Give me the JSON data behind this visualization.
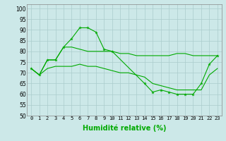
{
  "xlabel": "Humidité relative (%)",
  "bg_color": "#cce8e8",
  "grid_color": "#aacccc",
  "line_color": "#00aa00",
  "marker": "*",
  "xlim": [
    -0.5,
    23.5
  ],
  "ylim": [
    50,
    102
  ],
  "yticks": [
    50,
    55,
    60,
    65,
    70,
    75,
    80,
    85,
    90,
    95,
    100
  ],
  "xticks": [
    0,
    1,
    2,
    3,
    4,
    5,
    6,
    7,
    8,
    9,
    10,
    11,
    12,
    13,
    14,
    15,
    16,
    17,
    18,
    19,
    20,
    21,
    22,
    23
  ],
  "line1_x": [
    0,
    1,
    2,
    3,
    4,
    5,
    6,
    7,
    8,
    9,
    10,
    14,
    15,
    16,
    17,
    18,
    19,
    20,
    21,
    22,
    23
  ],
  "line1_y": [
    72,
    69,
    76,
    76,
    82,
    86,
    91,
    91,
    89,
    81,
    80,
    65,
    61,
    62,
    61,
    60,
    60,
    60,
    65,
    74,
    78
  ],
  "line2_x": [
    0,
    1,
    2,
    3,
    4,
    5,
    6,
    7,
    8,
    9,
    10,
    11,
    12,
    13,
    14,
    15,
    16,
    17,
    18,
    19,
    20,
    21,
    22,
    23
  ],
  "line2_y": [
    72,
    69,
    76,
    76,
    82,
    82,
    81,
    80,
    80,
    80,
    80,
    79,
    79,
    78,
    78,
    78,
    78,
    78,
    79,
    79,
    78,
    78,
    78,
    78
  ],
  "line3_x": [
    0,
    1,
    2,
    3,
    4,
    5,
    6,
    7,
    8,
    9,
    10,
    11,
    12,
    13,
    14,
    15,
    16,
    17,
    18,
    19,
    20,
    21,
    22,
    23
  ],
  "line3_y": [
    72,
    69,
    72,
    73,
    73,
    73,
    74,
    73,
    73,
    72,
    71,
    70,
    70,
    69,
    68,
    65,
    64,
    63,
    62,
    62,
    62,
    62,
    69,
    72
  ],
  "line1_markers_x": [
    0,
    2,
    3,
    5,
    6,
    7,
    8,
    9,
    14,
    15,
    16,
    17,
    18,
    22,
    23
  ],
  "line1_markers_y": [
    72,
    76,
    76,
    86,
    91,
    91,
    89,
    81,
    65,
    61,
    62,
    61,
    60,
    74,
    78
  ]
}
